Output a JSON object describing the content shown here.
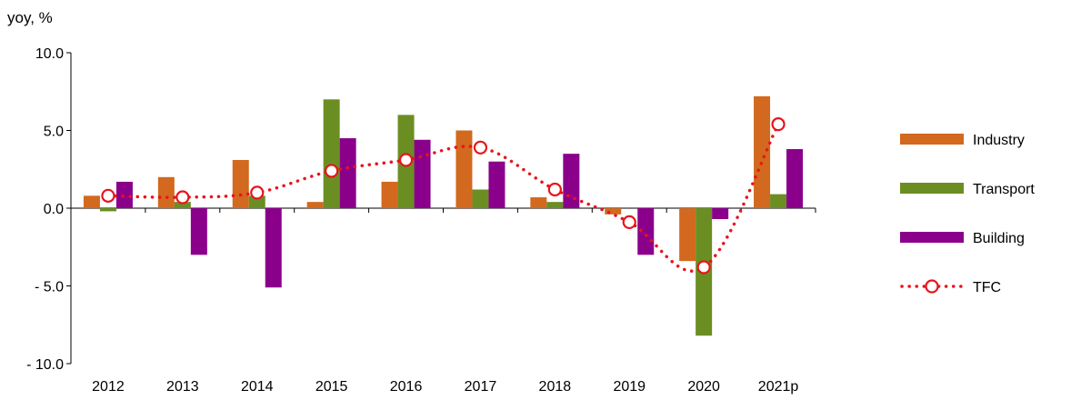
{
  "chart_data": {
    "type": "bar",
    "ylabel": "yoy, %",
    "ylim": [
      -10,
      10
    ],
    "yticks": [
      10,
      5,
      0,
      -5,
      -10
    ],
    "ytick_labels": [
      "10.0",
      "5.0",
      "0.0",
      "- 5.0",
      "- 10.0"
    ],
    "categories": [
      "2012",
      "2013",
      "2014",
      "2015",
      "2016",
      "2017",
      "2018",
      "2019",
      "2020",
      "2021p"
    ],
    "series": [
      {
        "name": "Industry",
        "kind": "bar",
        "color": "#D2691E",
        "values": [
          0.8,
          2.0,
          3.1,
          0.4,
          1.7,
          5.0,
          0.7,
          -0.4,
          -3.4,
          7.2
        ]
      },
      {
        "name": "Transport",
        "kind": "bar",
        "color": "#6B8E23",
        "values": [
          -0.2,
          0.4,
          0.8,
          7.0,
          6.0,
          1.2,
          0.4,
          0.0,
          -8.2,
          0.9
        ]
      },
      {
        "name": "Building",
        "kind": "bar",
        "color": "#8B008B",
        "values": [
          1.7,
          -3.0,
          -5.1,
          4.5,
          4.4,
          3.0,
          3.5,
          -3.0,
          -0.7,
          3.8
        ]
      },
      {
        "name": "TFC",
        "kind": "line",
        "style": "dotted",
        "marker": "open-circle",
        "color": "#E8141C",
        "values": [
          0.8,
          0.7,
          1.0,
          2.4,
          3.1,
          3.9,
          1.2,
          -0.9,
          -3.8,
          5.4
        ]
      }
    ],
    "grid": false,
    "legend_position": "right"
  }
}
